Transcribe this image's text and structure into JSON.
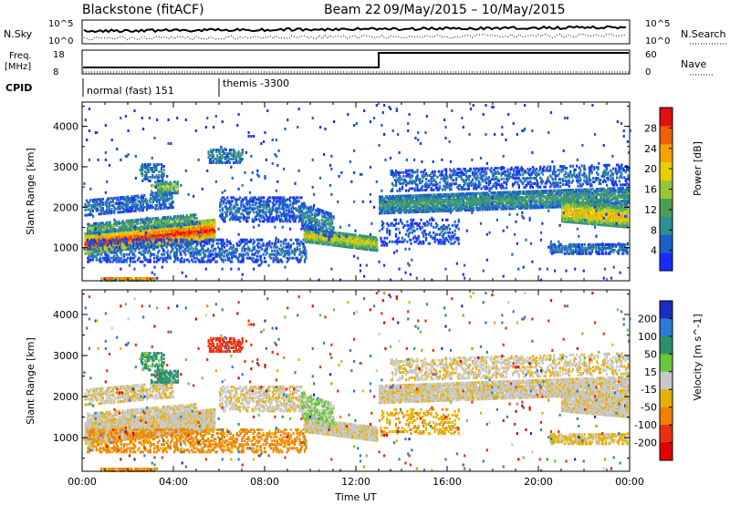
{
  "header": {
    "radar": "Blackstone (fitACF)",
    "beam": "Beam 22",
    "dates": "09/May/2015 – 10/May/2015"
  },
  "strip": {
    "nsky_label": "N.Sky",
    "nsearch_label": "N.Search",
    "freq_label_1": "Freq.",
    "freq_label_2": "[MHz]",
    "nave_label": "Nave",
    "cpid_label": "CPID",
    "left_ticks": {
      "nsky_top": "10^5",
      "nsky_bottom": "10^0",
      "freq_top": "18",
      "freq_bottom": "8"
    },
    "right_ticks": {
      "nsearch_top": "10^5",
      "nsearch_bottom": "10^0",
      "nave_top": "60",
      "nave_bottom": "0"
    }
  },
  "cpid_segments": [
    {
      "label": "normal (fast) 151",
      "start_hour": 0
    },
    {
      "label": "themis -3300",
      "start_hour": 6
    }
  ],
  "chart_data": [
    {
      "type": "heatmap",
      "name": "Power",
      "xlabel": "",
      "ylabel": "Slant Range [km]",
      "x_ticks": [
        "00:00",
        "04:00",
        "08:00",
        "12:00",
        "16:00",
        "20:00",
        "00:00"
      ],
      "xlim_hours": [
        0,
        24
      ],
      "y_ticks": [
        1000,
        2000,
        3000,
        4000
      ],
      "ylim": [
        180,
        4600
      ],
      "colorbar": {
        "label": "Power [dB]",
        "ticks": [
          4,
          8,
          12,
          16,
          20,
          24,
          28
        ],
        "range": [
          0,
          32
        ],
        "colors": [
          "#1a2cff",
          "#1d5fc8",
          "#2f8f93",
          "#4d9e55",
          "#97c834",
          "#e6cf00",
          "#f5a300",
          "#f06000",
          "#e01010"
        ]
      }
    },
    {
      "type": "heatmap",
      "name": "Velocity",
      "xlabel": "Time UT",
      "ylabel": "Slant Range [km]",
      "x_ticks": [
        "00:00",
        "04:00",
        "08:00",
        "12:00",
        "16:00",
        "20:00",
        "00:00"
      ],
      "xlim_hours": [
        0,
        24
      ],
      "y_ticks": [
        1000,
        2000,
        3000,
        4000
      ],
      "ylim": [
        180,
        4600
      ],
      "colorbar": {
        "label": "Velocity [m s^-1]",
        "ticks": [
          "200",
          "100",
          "50",
          "15",
          "-15",
          "-50",
          "-100",
          "-200"
        ],
        "colors": [
          "#1b2dbf",
          "#2e7bd6",
          "#2f8f6b",
          "#6cc43c",
          "#c8c8c8",
          "#e6b000",
          "#f08000",
          "#e83010",
          "#e00000"
        ]
      }
    }
  ],
  "echo_regions": [
    {
      "t0": 0.1,
      "t1": 5.8,
      "r0": 850,
      "r1": 1350,
      "p": 26,
      "v": -5,
      "density": 0.95,
      "slope": 0.06
    },
    {
      "t0": 0.2,
      "t1": 5.0,
      "r0": 1350,
      "r1": 1600,
      "p": 12,
      "v": -5,
      "density": 0.65,
      "slope": 0.05
    },
    {
      "t0": 0.1,
      "t1": 4.0,
      "r0": 1800,
      "r1": 2200,
      "p": 7,
      "v": -10,
      "density": 0.5,
      "slope": 0.05
    },
    {
      "t0": 3.0,
      "t1": 4.2,
      "r0": 2350,
      "r1": 2650,
      "p": 14,
      "v": 80,
      "density": 0.6,
      "slope": 0
    },
    {
      "t0": 2.5,
      "t1": 3.6,
      "r0": 2650,
      "r1": 3100,
      "p": 8,
      "v": 60,
      "density": 0.35,
      "slope": 0
    },
    {
      "t0": 5.5,
      "t1": 7.0,
      "r0": 3100,
      "r1": 3450,
      "p": 9,
      "v": -150,
      "density": 0.45,
      "slope": 0
    },
    {
      "t0": 6.0,
      "t1": 9.7,
      "r0": 1650,
      "r1": 2250,
      "p": 6,
      "v": -8,
      "density": 0.45,
      "slope": 0
    },
    {
      "t0": 0.2,
      "t1": 9.8,
      "r0": 650,
      "r1": 1200,
      "p": 6,
      "v": -60,
      "density": 0.35,
      "slope": 0
    },
    {
      "t0": 9.7,
      "t1": 12.9,
      "r0": 1150,
      "r1": 1500,
      "p": 17,
      "v": -5,
      "density": 0.9,
      "slope": -0.07
    },
    {
      "t0": 9.6,
      "t1": 11.0,
      "r0": 1500,
      "r1": 2100,
      "p": 8,
      "v": 20,
      "density": 0.5,
      "slope": -0.2
    },
    {
      "t0": 13.0,
      "t1": 23.9,
      "r0": 1850,
      "r1": 2300,
      "p": 10,
      "v": -5,
      "density": 0.8,
      "slope": 0.02
    },
    {
      "t0": 13.5,
      "t1": 23.9,
      "r0": 2400,
      "r1": 2900,
      "p": 6,
      "v": -8,
      "density": 0.35,
      "slope": 0.015
    },
    {
      "t0": 21.0,
      "t1": 23.9,
      "r0": 1650,
      "r1": 2150,
      "p": 20,
      "v": -5,
      "density": 0.85,
      "slope": -0.05
    },
    {
      "t0": 13.0,
      "t1": 16.5,
      "r0": 1100,
      "r1": 1700,
      "p": 5,
      "v": -40,
      "density": 0.2,
      "slope": 0
    },
    {
      "t0": 20.5,
      "t1": 23.9,
      "r0": 850,
      "r1": 1100,
      "p": 7,
      "v": -20,
      "density": 0.55,
      "slope": 0
    },
    {
      "t0": 0.8,
      "t1": 3.2,
      "r0": 190,
      "r1": 260,
      "p": 26,
      "v": -60,
      "density": 0.7,
      "slope": 0
    },
    {
      "t0": 0.0,
      "t1": 24.0,
      "r0": 200,
      "r1": 4550,
      "p": 4,
      "v": 0,
      "density": 0.012,
      "slope": 0
    }
  ]
}
